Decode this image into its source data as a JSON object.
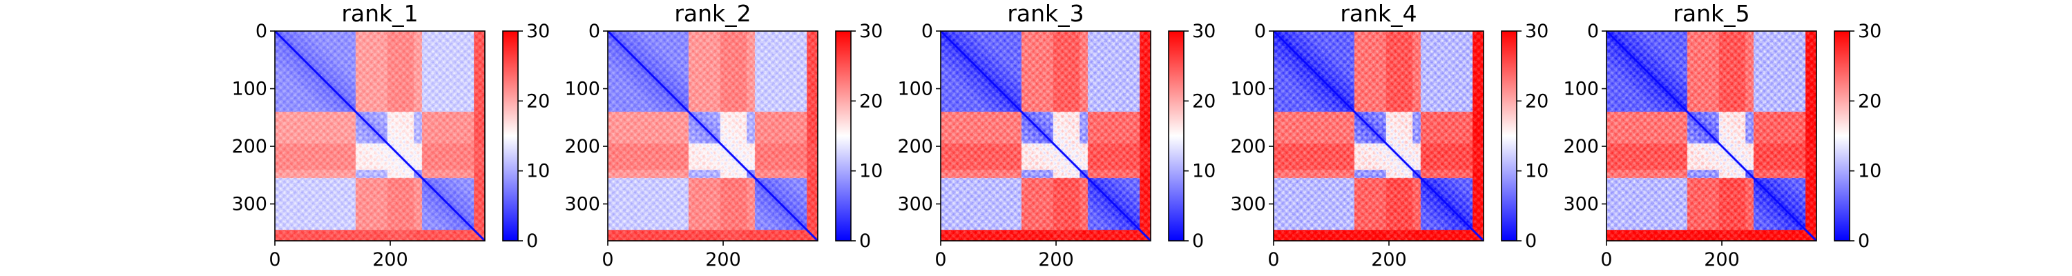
{
  "chart_data": [
    {
      "type": "heatmap",
      "title": "rank_1",
      "colormap": "bwr",
      "x_ticks": [
        0,
        200
      ],
      "y_ticks": [
        0,
        100,
        200,
        300
      ],
      "xlim": [
        0,
        364
      ],
      "ylim": [
        364,
        0
      ],
      "colorbar": {
        "min": 0,
        "max": 30,
        "ticks": [
          0,
          10,
          20,
          30
        ]
      },
      "contrast": 0.7
    },
    {
      "type": "heatmap",
      "title": "rank_2",
      "colormap": "bwr",
      "x_ticks": [
        0,
        200
      ],
      "y_ticks": [
        0,
        100,
        200,
        300
      ],
      "xlim": [
        0,
        364
      ],
      "ylim": [
        364,
        0
      ],
      "colorbar": {
        "min": 0,
        "max": 30,
        "ticks": [
          0,
          10,
          20,
          30
        ]
      },
      "contrast": 0.75
    },
    {
      "type": "heatmap",
      "title": "rank_3",
      "colormap": "bwr",
      "x_ticks": [
        0,
        200
      ],
      "y_ticks": [
        0,
        100,
        200,
        300
      ],
      "xlim": [
        0,
        364
      ],
      "ylim": [
        364,
        0
      ],
      "colorbar": {
        "min": 0,
        "max": 30,
        "ticks": [
          0,
          10,
          20,
          30
        ]
      },
      "contrast": 0.95
    },
    {
      "type": "heatmap",
      "title": "rank_4",
      "colormap": "bwr",
      "x_ticks": [
        0,
        200
      ],
      "y_ticks": [
        0,
        100,
        200,
        300
      ],
      "xlim": [
        0,
        364
      ],
      "ylim": [
        364,
        0
      ],
      "colorbar": {
        "min": 0,
        "max": 30,
        "ticks": [
          0,
          10,
          20,
          30
        ]
      },
      "contrast": 1.0
    },
    {
      "type": "heatmap",
      "title": "rank_5",
      "colormap": "bwr",
      "x_ticks": [
        0,
        200
      ],
      "y_ticks": [
        0,
        100,
        200,
        300
      ],
      "xlim": [
        0,
        364
      ],
      "ylim": [
        364,
        0
      ],
      "colorbar": {
        "min": 0,
        "max": 30,
        "ticks": [
          0,
          10,
          20,
          30
        ]
      },
      "contrast": 1.0
    }
  ],
  "colors": {
    "low": "#0000ff",
    "mid": "#ffffff",
    "high": "#ff0000"
  }
}
